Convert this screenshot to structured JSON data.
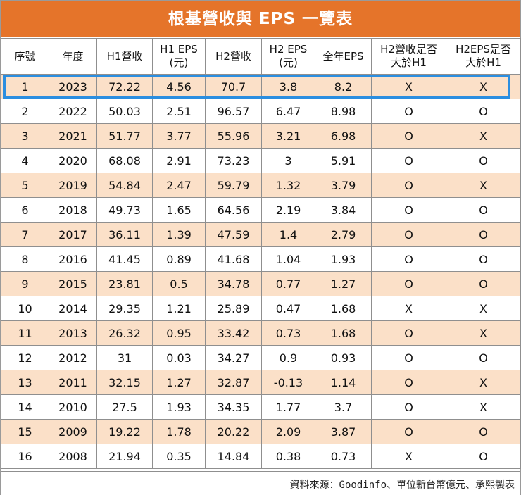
{
  "title": "根基營收與 EPS 一覽表",
  "columns": [
    [
      "序號"
    ],
    [
      "年度"
    ],
    [
      "H1營收"
    ],
    [
      "H1 EPS",
      "(元)"
    ],
    [
      "H2營收"
    ],
    [
      "H2 EPS",
      "(元)"
    ],
    [
      "全年EPS"
    ],
    [
      "H2營收是否",
      "大於H1"
    ],
    [
      "H2EPS是否",
      "大於H1"
    ]
  ],
  "rows": [
    [
      "1",
      "2023",
      "72.22",
      "4.56",
      "70.7",
      "3.8",
      "8.2",
      "X",
      "X"
    ],
    [
      "2",
      "2022",
      "50.03",
      "2.51",
      "96.57",
      "6.47",
      "8.98",
      "O",
      "O"
    ],
    [
      "3",
      "2021",
      "51.77",
      "3.77",
      "55.96",
      "3.21",
      "6.98",
      "O",
      "X"
    ],
    [
      "4",
      "2020",
      "68.08",
      "2.91",
      "73.23",
      "3",
      "5.91",
      "O",
      "O"
    ],
    [
      "5",
      "2019",
      "54.84",
      "2.47",
      "59.79",
      "1.32",
      "3.79",
      "O",
      "X"
    ],
    [
      "6",
      "2018",
      "49.73",
      "1.65",
      "64.56",
      "2.19",
      "3.84",
      "O",
      "O"
    ],
    [
      "7",
      "2017",
      "36.11",
      "1.39",
      "47.59",
      "1.4",
      "2.79",
      "O",
      "O"
    ],
    [
      "8",
      "2016",
      "41.45",
      "0.89",
      "41.68",
      "1.04",
      "1.93",
      "O",
      "O"
    ],
    [
      "9",
      "2015",
      "23.81",
      "0.5",
      "34.78",
      "0.77",
      "1.27",
      "O",
      "O"
    ],
    [
      "10",
      "2014",
      "29.35",
      "1.21",
      "25.89",
      "0.47",
      "1.68",
      "X",
      "X"
    ],
    [
      "11",
      "2013",
      "26.32",
      "0.95",
      "33.42",
      "0.73",
      "1.68",
      "O",
      "X"
    ],
    [
      "12",
      "2012",
      "31",
      "0.03",
      "34.27",
      "0.9",
      "0.93",
      "O",
      "O"
    ],
    [
      "13",
      "2011",
      "32.15",
      "1.27",
      "32.87",
      "-0.13",
      "1.14",
      "O",
      "X"
    ],
    [
      "14",
      "2010",
      "27.5",
      "1.93",
      "34.35",
      "1.77",
      "3.7",
      "O",
      "X"
    ],
    [
      "15",
      "2009",
      "19.22",
      "1.78",
      "20.22",
      "2.09",
      "3.87",
      "O",
      "O"
    ],
    [
      "16",
      "2008",
      "21.94",
      "0.35",
      "14.84",
      "0.38",
      "0.73",
      "X",
      "O"
    ]
  ],
  "footer": "資料來源：Goodinfo、單位新台幣億元、承熙製表",
  "colors": {
    "title_bg": "#e5742a",
    "title_text": "#ffffff",
    "stripe": "#fbe0c8",
    "highlight_border": "#2b8ee0",
    "grid_line": "#8f8f8f"
  }
}
